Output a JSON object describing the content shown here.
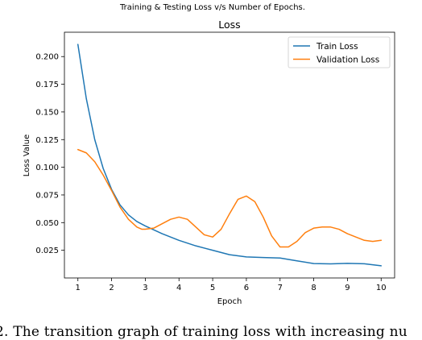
{
  "figure": {
    "suptitle": "Training & Testing Loss v/s Number of Epochs."
  },
  "caption": "2. The transition graph of training loss with increasing nu",
  "chart_data": {
    "type": "line",
    "title": "Loss",
    "xlabel": "Epoch",
    "ylabel": "Loss Value",
    "xlim": [
      0.6,
      10.4
    ],
    "ylim": [
      0.0,
      0.222
    ],
    "xticks": [
      1,
      2,
      3,
      4,
      5,
      6,
      7,
      8,
      9,
      10
    ],
    "yticks": [
      0.025,
      0.05,
      0.075,
      0.1,
      0.125,
      0.15,
      0.175,
      0.2
    ],
    "ytick_labels": [
      "0.025",
      "0.050",
      "0.075",
      "0.100",
      "0.125",
      "0.150",
      "0.175",
      "0.200"
    ],
    "grid": false,
    "legend_position": "upper right",
    "series": [
      {
        "name": "Train Loss",
        "color": "#1f77b4",
        "x": [
          1,
          1.25,
          1.5,
          1.75,
          2,
          2.25,
          2.5,
          2.75,
          3,
          3.5,
          4,
          4.5,
          5,
          5.5,
          6,
          6.5,
          7,
          7.5,
          8,
          8.5,
          9,
          9.5,
          10
        ],
        "y": [
          0.211,
          0.162,
          0.125,
          0.099,
          0.08,
          0.066,
          0.057,
          0.051,
          0.047,
          0.04,
          0.034,
          0.029,
          0.025,
          0.021,
          0.019,
          0.0185,
          0.018,
          0.0155,
          0.013,
          0.0127,
          0.0132,
          0.0128,
          0.011
        ]
      },
      {
        "name": "Validation Loss",
        "color": "#ff7f0e",
        "x": [
          1,
          1.25,
          1.5,
          1.75,
          2,
          2.25,
          2.5,
          2.75,
          2.9,
          3,
          3.25,
          3.5,
          3.75,
          4,
          4.25,
          4.5,
          4.75,
          5,
          5.25,
          5.5,
          5.75,
          6,
          6.25,
          6.5,
          6.75,
          7,
          7.25,
          7.5,
          7.75,
          8,
          8.25,
          8.5,
          8.75,
          9,
          9.25,
          9.5,
          9.75,
          10
        ],
        "y": [
          0.116,
          0.113,
          0.105,
          0.093,
          0.079,
          0.064,
          0.053,
          0.046,
          0.044,
          0.044,
          0.045,
          0.049,
          0.053,
          0.055,
          0.053,
          0.046,
          0.039,
          0.037,
          0.044,
          0.058,
          0.071,
          0.074,
          0.069,
          0.055,
          0.038,
          0.028,
          0.028,
          0.033,
          0.041,
          0.045,
          0.046,
          0.046,
          0.044,
          0.04,
          0.037,
          0.034,
          0.033,
          0.034
        ]
      }
    ]
  }
}
